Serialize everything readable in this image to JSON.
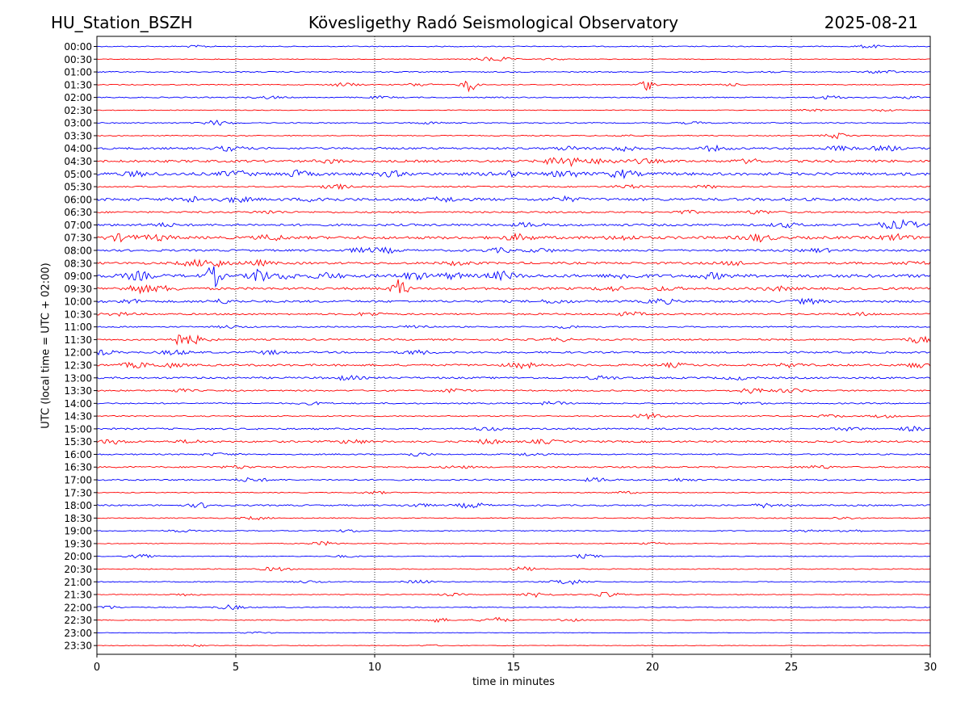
{
  "header": {
    "station": "HU_Station_BSZH",
    "title": "Kövesligethy Radó Seismological Observatory",
    "date": "2025-08-21"
  },
  "chart_data": {
    "type": "line",
    "title": "Kövesligethy Radó Seismological Observatory",
    "xlabel": "time in minutes",
    "ylabel": "UTC (local time = UTC + 02:00)",
    "xlim": [
      0,
      30
    ],
    "x_ticks": [
      0,
      5,
      10,
      15,
      20,
      25,
      30
    ],
    "grid": "vertical dotted lines at each 5 minutes",
    "colors": {
      "even_rows": "#0000ff",
      "odd_rows": "#ff0000"
    },
    "rows": [
      {
        "label": "00:00",
        "noise": 0.5,
        "events": [
          [
            27.8,
            1.2
          ],
          [
            3.6,
            0.8
          ]
        ]
      },
      {
        "label": "00:30",
        "noise": 0.4,
        "events": [
          [
            14.5,
            1.6
          ],
          [
            13.9,
            1.0
          ],
          [
            16.5,
            0.6
          ]
        ]
      },
      {
        "label": "01:00",
        "noise": 0.6,
        "events": [
          [
            28.3,
            1.2
          ],
          [
            24.0,
            0.8
          ]
        ]
      },
      {
        "label": "01:30",
        "noise": 0.5,
        "events": [
          [
            13.4,
            6.0
          ],
          [
            19.8,
            4.5
          ],
          [
            8.9,
            1.5
          ],
          [
            11.6,
            1.3
          ],
          [
            22.8,
            0.9
          ]
        ]
      },
      {
        "label": "02:00",
        "noise": 0.6,
        "events": [
          [
            6.2,
            1.0
          ],
          [
            26.4,
            1.4
          ],
          [
            10.2,
            0.8
          ],
          [
            29.3,
            0.8
          ]
        ]
      },
      {
        "label": "02:30",
        "noise": 0.4,
        "events": [
          [
            28.3,
            0.8
          ],
          [
            25.8,
            0.8
          ]
        ]
      },
      {
        "label": "03:00",
        "noise": 0.6,
        "events": [
          [
            4.3,
            2.0
          ],
          [
            12.0,
            0.8
          ],
          [
            21.5,
            0.8
          ]
        ]
      },
      {
        "label": "03:30",
        "noise": 0.5,
        "events": [
          [
            26.7,
            2.2
          ],
          [
            18.9,
            0.8
          ]
        ]
      },
      {
        "label": "04:00",
        "noise": 1.1,
        "events": [
          [
            4.8,
            1.8
          ],
          [
            18.9,
            2.0
          ],
          [
            22.2,
            1.8
          ],
          [
            26.7,
            1.6
          ],
          [
            28.4,
            1.8
          ],
          [
            17.0,
            1.4
          ]
        ]
      },
      {
        "label": "04:30",
        "noise": 1.3,
        "events": [
          [
            16.6,
            3.0
          ],
          [
            17.2,
            2.2
          ],
          [
            18.3,
            1.8
          ],
          [
            19.7,
            1.5
          ],
          [
            8.4,
            1.2
          ],
          [
            23.5,
            1.4
          ]
        ]
      },
      {
        "label": "05:00",
        "noise": 1.6,
        "events": [
          [
            5.0,
            2.2
          ],
          [
            7.2,
            2.2
          ],
          [
            14.7,
            2.0
          ],
          [
            16.9,
            2.5
          ],
          [
            18.9,
            2.8
          ],
          [
            10.6,
            1.8
          ],
          [
            1.5,
            1.6
          ]
        ]
      },
      {
        "label": "05:30",
        "noise": 0.7,
        "events": [
          [
            8.6,
            2.0
          ],
          [
            19.1,
            1.4
          ],
          [
            22.0,
            1.0
          ]
        ]
      },
      {
        "label": "06:00",
        "noise": 1.5,
        "events": [
          [
            3.5,
            2.0
          ],
          [
            5.0,
            1.8
          ],
          [
            8.0,
            1.8
          ],
          [
            12.5,
            1.6
          ],
          [
            16.8,
            1.6
          ]
        ]
      },
      {
        "label": "06:30",
        "noise": 0.9,
        "events": [
          [
            6.2,
            1.2
          ],
          [
            21.2,
            1.2
          ],
          [
            23.8,
            1.4
          ]
        ]
      },
      {
        "label": "07:00",
        "noise": 1.2,
        "events": [
          [
            29.1,
            3.0
          ],
          [
            28.4,
            1.8
          ],
          [
            24.8,
            1.6
          ],
          [
            15.5,
            1.6
          ],
          [
            2.4,
            1.2
          ]
        ]
      },
      {
        "label": "07:30",
        "noise": 1.5,
        "events": [
          [
            0.9,
            2.6
          ],
          [
            2.2,
            2.0
          ],
          [
            6.3,
            2.0
          ],
          [
            15.2,
            2.4
          ],
          [
            23.8,
            2.8
          ],
          [
            28.8,
            2.4
          ],
          [
            18.9,
            1.6
          ]
        ]
      },
      {
        "label": "08:00",
        "noise": 1.1,
        "events": [
          [
            9.5,
            1.5
          ],
          [
            10.4,
            1.8
          ],
          [
            14.5,
            1.6
          ],
          [
            16.0,
            1.4
          ],
          [
            26.0,
            1.4
          ]
        ]
      },
      {
        "label": "08:30",
        "noise": 1.2,
        "events": [
          [
            4.2,
            3.0
          ],
          [
            3.4,
            1.8
          ],
          [
            5.8,
            2.0
          ],
          [
            13.0,
            1.5
          ],
          [
            23.0,
            1.5
          ],
          [
            29.4,
            1.6
          ]
        ]
      },
      {
        "label": "09:00",
        "noise": 1.7,
        "events": [
          [
            4.2,
            9.0
          ],
          [
            5.8,
            8.0
          ],
          [
            1.5,
            3.0
          ],
          [
            14.6,
            3.0
          ],
          [
            11.4,
            2.5
          ],
          [
            19.0,
            2.0
          ],
          [
            6.8,
            2.0
          ],
          [
            8.3,
            2.0
          ],
          [
            22.2,
            2.0
          ],
          [
            12.8,
            2.0
          ]
        ]
      },
      {
        "label": "09:30",
        "noise": 1.3,
        "events": [
          [
            1.5,
            3.0
          ],
          [
            2.4,
            1.8
          ],
          [
            10.9,
            8.5
          ],
          [
            18.5,
            1.6
          ],
          [
            24.5,
            1.4
          ],
          [
            20.5,
            1.2
          ]
        ]
      },
      {
        "label": "10:00",
        "noise": 1.2,
        "events": [
          [
            20.3,
            2.0
          ],
          [
            25.6,
            1.8
          ],
          [
            16.5,
            1.4
          ],
          [
            1.2,
            1.4
          ],
          [
            4.5,
            1.4
          ]
        ]
      },
      {
        "label": "10:30",
        "noise": 0.9,
        "events": [
          [
            9.8,
            1.4
          ],
          [
            19.2,
            1.6
          ],
          [
            0.8,
            1.2
          ],
          [
            27.5,
            1.2
          ]
        ]
      },
      {
        "label": "11:00",
        "noise": 0.7,
        "events": [
          [
            11.5,
            1.4
          ],
          [
            17.0,
            1.0
          ],
          [
            4.8,
            1.0
          ]
        ]
      },
      {
        "label": "11:30",
        "noise": 0.9,
        "events": [
          [
            3.0,
            4.0
          ],
          [
            3.6,
            2.0
          ],
          [
            29.6,
            2.5
          ],
          [
            16.6,
            1.2
          ]
        ]
      },
      {
        "label": "12:00",
        "noise": 1.0,
        "events": [
          [
            2.8,
            1.8
          ],
          [
            11.5,
            1.6
          ],
          [
            0.2,
            1.6
          ],
          [
            6.2,
            1.4
          ]
        ]
      },
      {
        "label": "12:30",
        "noise": 1.1,
        "events": [
          [
            15.3,
            2.2
          ],
          [
            1.4,
            2.0
          ],
          [
            2.6,
            1.6
          ],
          [
            29.6,
            1.8
          ],
          [
            20.8,
            1.4
          ],
          [
            25.0,
            1.4
          ]
        ]
      },
      {
        "label": "13:00",
        "noise": 1.0,
        "events": [
          [
            9.0,
            1.6
          ],
          [
            18.2,
            1.4
          ],
          [
            23.1,
            1.2
          ]
        ]
      },
      {
        "label": "13:30",
        "noise": 0.8,
        "events": [
          [
            23.6,
            2.0
          ],
          [
            25.0,
            1.6
          ],
          [
            12.8,
            1.4
          ],
          [
            3.0,
            1.0
          ]
        ]
      },
      {
        "label": "14:00",
        "noise": 0.7,
        "events": [
          [
            16.4,
            1.4
          ],
          [
            7.8,
            1.0
          ],
          [
            23.5,
            1.0
          ]
        ]
      },
      {
        "label": "14:30",
        "noise": 0.6,
        "events": [
          [
            19.9,
            2.2
          ],
          [
            26.4,
            1.2
          ],
          [
            28.3,
            1.2
          ]
        ]
      },
      {
        "label": "15:00",
        "noise": 0.9,
        "events": [
          [
            29.4,
            1.6
          ],
          [
            14.0,
            1.2
          ],
          [
            27.0,
            1.2
          ]
        ]
      },
      {
        "label": "15:30",
        "noise": 1.0,
        "events": [
          [
            14.1,
            1.8
          ],
          [
            0.6,
            1.6
          ],
          [
            9.2,
            1.6
          ],
          [
            16.1,
            1.4
          ],
          [
            3.4,
            1.2
          ]
        ]
      },
      {
        "label": "16:00",
        "noise": 0.7,
        "events": [
          [
            11.5,
            1.4
          ],
          [
            15.6,
            1.2
          ],
          [
            4.4,
            1.0
          ]
        ]
      },
      {
        "label": "16:30",
        "noise": 0.8,
        "events": [
          [
            5.1,
            1.2
          ],
          [
            26.0,
            1.2
          ],
          [
            13.0,
            1.0
          ]
        ]
      },
      {
        "label": "17:00",
        "noise": 0.8,
        "events": [
          [
            5.6,
            1.6
          ],
          [
            18.0,
            1.4
          ],
          [
            21.0,
            1.0
          ]
        ]
      },
      {
        "label": "17:30",
        "noise": 0.5,
        "events": [
          [
            10.0,
            1.0
          ],
          [
            19.0,
            0.8
          ]
        ]
      },
      {
        "label": "18:00",
        "noise": 0.8,
        "events": [
          [
            3.8,
            1.8
          ],
          [
            13.5,
            2.2
          ],
          [
            24.2,
            2.0
          ],
          [
            11.5,
            1.2
          ]
        ]
      },
      {
        "label": "18:30",
        "noise": 0.5,
        "events": [
          [
            5.7,
            1.2
          ],
          [
            26.9,
            1.0
          ]
        ]
      },
      {
        "label": "19:00",
        "noise": 0.5,
        "events": [
          [
            3.0,
            1.0
          ],
          [
            9.1,
            1.0
          ],
          [
            27.1,
            1.2
          ],
          [
            25.5,
            0.8
          ]
        ]
      },
      {
        "label": "19:30",
        "noise": 0.4,
        "events": [
          [
            8.2,
            1.6
          ],
          [
            20.0,
            0.8
          ]
        ]
      },
      {
        "label": "20:00",
        "noise": 0.4,
        "events": [
          [
            1.6,
            1.4
          ],
          [
            17.6,
            1.6
          ],
          [
            8.9,
            0.8
          ]
        ]
      },
      {
        "label": "20:30",
        "noise": 0.5,
        "events": [
          [
            6.4,
            1.6
          ],
          [
            15.4,
            1.8
          ]
        ]
      },
      {
        "label": "21:00",
        "noise": 0.5,
        "events": [
          [
            11.6,
            1.4
          ],
          [
            16.8,
            1.4
          ],
          [
            17.2,
            1.2
          ],
          [
            7.6,
            1.0
          ]
        ]
      },
      {
        "label": "21:30",
        "noise": 0.4,
        "events": [
          [
            15.9,
            2.0
          ],
          [
            18.4,
            2.0
          ],
          [
            3.2,
            1.0
          ],
          [
            12.8,
            1.0
          ]
        ]
      },
      {
        "label": "22:00",
        "noise": 0.5,
        "events": [
          [
            4.8,
            1.8
          ],
          [
            0.3,
            1.4
          ]
        ]
      },
      {
        "label": "22:30",
        "noise": 0.5,
        "events": [
          [
            14.3,
            2.2
          ],
          [
            12.2,
            1.6
          ],
          [
            16.9,
            1.2
          ]
        ]
      },
      {
        "label": "23:00",
        "noise": 0.3,
        "events": [
          [
            5.8,
            0.8
          ]
        ]
      },
      {
        "label": "23:30",
        "noise": 0.3,
        "events": [
          [
            3.5,
            0.8
          ],
          [
            12.0,
            0.6
          ]
        ]
      }
    ]
  }
}
